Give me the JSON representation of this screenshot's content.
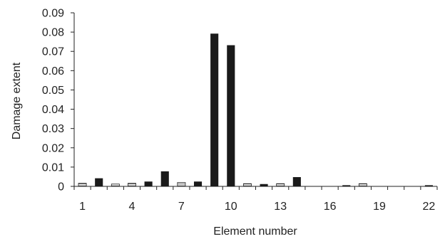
{
  "chart_data": {
    "type": "bar",
    "title": "",
    "xlabel": "Element number",
    "ylabel": "Damage extent",
    "ylim": [
      0,
      0.09
    ],
    "yticks": [
      "0",
      "0.01",
      "0.02",
      "0.03",
      "0.04",
      "0.05",
      "0.06",
      "0.07",
      "0.08",
      "0.09"
    ],
    "categories": [
      1,
      2,
      3,
      4,
      5,
      6,
      7,
      8,
      9,
      10,
      11,
      12,
      13,
      14,
      15,
      16,
      17,
      18,
      19,
      20,
      21,
      22
    ],
    "xtick_labels": [
      "1",
      "4",
      "7",
      "10",
      "13",
      "16",
      "19",
      "22"
    ],
    "xtick_categories": [
      1,
      4,
      7,
      10,
      13,
      16,
      19,
      22
    ],
    "grid": false,
    "legend": "none",
    "series": [
      {
        "style": "hatched-white",
        "values": [
          0.0016,
          0,
          0.0012,
          0.0016,
          0,
          0,
          0.002,
          0,
          0,
          0,
          0.0014,
          0,
          0.0014,
          0,
          0,
          0,
          0,
          0.0014,
          0,
          0,
          0,
          0
        ]
      },
      {
        "style": "solid-black",
        "values": [
          0,
          0.0042,
          0,
          0,
          0.0025,
          0.0078,
          0,
          0.0025,
          0.0792,
          0.0732,
          0,
          0.0012,
          0,
          0.0048,
          0,
          0,
          0.0006,
          0,
          0,
          0,
          0,
          0.0006
        ]
      }
    ],
    "colors": {
      "solid": "#1a1a1a",
      "hatched_fill": "#ffffff",
      "hatched_stroke": "#222222",
      "axis": "#222222"
    }
  }
}
